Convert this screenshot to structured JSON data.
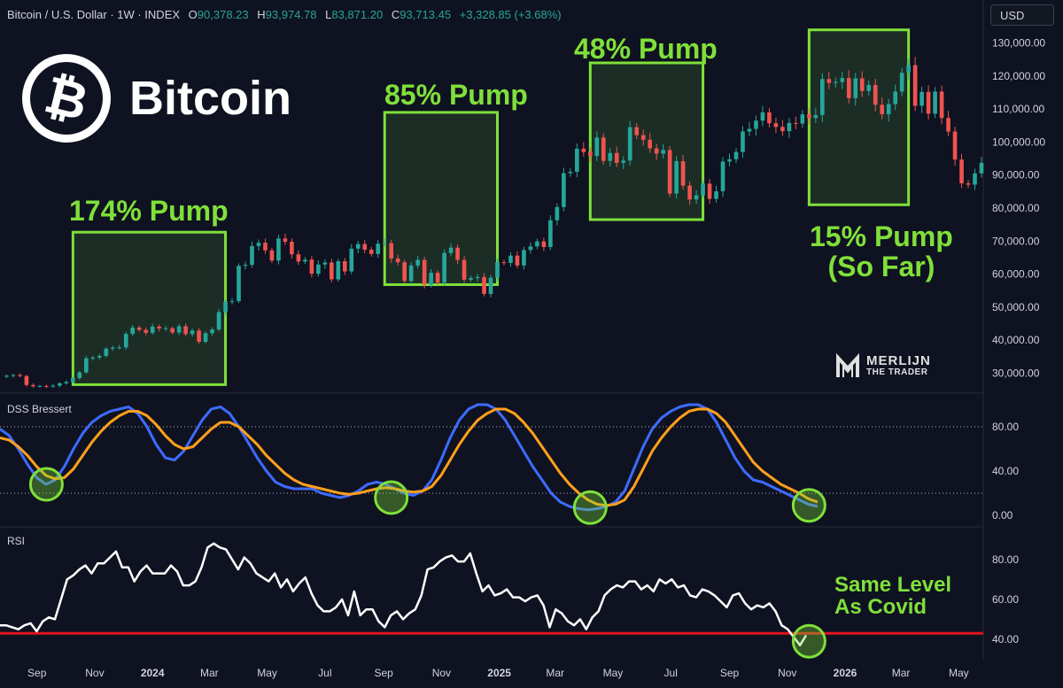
{
  "header": {
    "symbol": "Bitcoin / U.S. Dollar · 1W · INDEX",
    "o_label": "O",
    "o_value": "90,378.23",
    "h_label": "H",
    "h_value": "93,974.78",
    "l_label": "L",
    "l_value": "83,871.20",
    "c_label": "C",
    "c_value": "93,713.45",
    "change": "+3,328.85 (+3.68%)"
  },
  "currency_button": "USD",
  "logo": {
    "word": "Bitcoin",
    "icon": "bitcoin-logo-icon"
  },
  "watermark": {
    "line1": "MERLIJN",
    "line2": "THE TRADER",
    "icon": "merlijn-m-icon"
  },
  "annotations": {
    "pump1": "174% Pump",
    "pump2": "85% Pump",
    "pump3": "48% Pump",
    "pump4_line1": "15% Pump",
    "pump4_line2": "(So Far)",
    "rsi_note_line1": "Same Level",
    "rsi_note_line2": "As Covid"
  },
  "colors": {
    "background": "#0f1220",
    "up": "#26a69a",
    "down": "#ef5350",
    "highlight": "#7fe03a",
    "dss_blue": "#3d6bff",
    "dss_orange": "#ff9f1c",
    "rsi": "#ffffff",
    "rsi_line": "#e0131e"
  },
  "chart_data": [
    {
      "type": "candlestick",
      "title": "Bitcoin / U.S. Dollar · 1W · INDEX",
      "ylim": [
        25000,
        135000
      ],
      "y_ticks": [
        30000,
        40000,
        50000,
        60000,
        70000,
        80000,
        90000,
        100000,
        110000,
        120000,
        130000
      ],
      "y_tick_labels": [
        "30,000.00",
        "40,000.00",
        "50,000.00",
        "60,000.00",
        "70,000.00",
        "80,000.00",
        "90,000.00",
        "100,000.00",
        "110,000.00",
        "120,000.00",
        "130,000.00"
      ],
      "x_tick_labels": [
        "Sep",
        "Nov",
        "2024",
        "Mar",
        "May",
        "Jul",
        "Sep",
        "Nov",
        "2025",
        "Mar",
        "May",
        "Jul",
        "Sep",
        "Nov",
        "2026",
        "Mar",
        "May"
      ],
      "x_tick_dates": [
        "2023-09-01",
        "2023-11-01",
        "2024-01-01",
        "2024-03-01",
        "2024-05-01",
        "2024-07-01",
        "2024-09-01",
        "2024-11-01",
        "2025-01-01",
        "2025-03-01",
        "2025-05-01",
        "2025-07-01",
        "2025-09-01",
        "2025-11-01",
        "2026-01-01",
        "2026-03-01",
        "2026-05-01"
      ],
      "x_start": "2023-07-24",
      "x_end": "2026-05-25",
      "closes": [
        29200,
        29400,
        29100,
        26400,
        26000,
        26100,
        25900,
        26200,
        26900,
        27300,
        28500,
        30200,
        34500,
        34700,
        35200,
        37400,
        37700,
        37800,
        41900,
        43800,
        43100,
        42200,
        44100,
        43500,
        43600,
        42300,
        44200,
        41800,
        42900,
        39500,
        42100,
        43200,
        48500,
        51600,
        51800,
        62500,
        62800,
        68500,
        69500,
        67200,
        64100,
        70800,
        69800,
        66000,
        63800,
        64400,
        60100,
        62900,
        63500,
        58400,
        63900,
        60800,
        67700,
        69100,
        67400,
        66100,
        69200,
        69400,
        64700,
        63600,
        57900,
        62600,
        64300,
        56800,
        60400,
        57400,
        66400,
        68000,
        64300,
        58300,
        58800,
        59100,
        54000,
        58900,
        63600,
        63400,
        65600,
        62600,
        67300,
        68400,
        69900,
        68200,
        76300,
        80300,
        90600,
        91000,
        98000,
        97000,
        95800,
        101400,
        94300,
        96700,
        93700,
        94400,
        104500,
        102100,
        100700,
        98100,
        96500,
        97600,
        84400,
        94200,
        86800,
        82600,
        83900,
        87400,
        82800,
        85100,
        94100,
        94800,
        97000,
        103200,
        104000,
        106500,
        109000,
        105700,
        104600,
        103300,
        105800,
        105600,
        108400,
        107300,
        108200,
        119100,
        117900,
        118200,
        119400,
        113300,
        119300,
        115500,
        117300,
        111300,
        108400,
        111500,
        115300,
        121000,
        123300,
        111000,
        115200,
        108600,
        115300,
        107300,
        103200,
        94700,
        87500,
        87100,
        90500,
        93700
      ],
      "highlight_boxes": [
        {
          "label": "174% Pump",
          "start": "2023-10-09",
          "end": "2024-03-18",
          "low": 26500,
          "high": 72700
        },
        {
          "label": "85% Pump",
          "start": "2024-09-02",
          "end": "2024-12-30",
          "low": 56800,
          "high": 109000
        },
        {
          "label": "48% Pump",
          "start": "2025-04-07",
          "end": "2025-08-04",
          "low": 76500,
          "high": 124000
        },
        {
          "label": "15% Pump (So Far)",
          "start": "2025-11-24",
          "end": "2026-03-09",
          "low": 81000,
          "high": 134000
        }
      ]
    },
    {
      "type": "line",
      "title": "DSS Bressert",
      "ylim": [
        -8,
        108
      ],
      "y_ticks": [
        0,
        40,
        80
      ],
      "y_tick_labels": [
        "0.00",
        "40.00",
        "80.00"
      ],
      "levels": [
        80,
        20
      ],
      "series": [
        {
          "color": "#3d6bff",
          "values": [
            78,
            72,
            60,
            46,
            34,
            28,
            32,
            44,
            60,
            74,
            84,
            90,
            94,
            96,
            98,
            92,
            80,
            64,
            52,
            50,
            58,
            72,
            86,
            96,
            98,
            92,
            80,
            66,
            52,
            40,
            30,
            26,
            24,
            24,
            24,
            20,
            18,
            16,
            18,
            22,
            28,
            30,
            28,
            24,
            20,
            18,
            22,
            32,
            50,
            70,
            86,
            96,
            100,
            100,
            96,
            86,
            72,
            58,
            44,
            32,
            20,
            12,
            8,
            6,
            5,
            6,
            8,
            12,
            22,
            42,
            62,
            78,
            88,
            94,
            98,
            100,
            100,
            96,
            84,
            68,
            52,
            40,
            32,
            30,
            26,
            22,
            18,
            14,
            10,
            8
          ]
        },
        {
          "color": "#ff9f1c",
          "values": [
            70,
            68,
            62,
            54,
            44,
            36,
            33,
            34,
            42,
            54,
            66,
            76,
            84,
            90,
            94,
            94,
            90,
            82,
            72,
            64,
            60,
            62,
            70,
            78,
            84,
            84,
            80,
            72,
            64,
            54,
            46,
            38,
            32,
            28,
            26,
            24,
            22,
            20,
            19,
            20,
            22,
            24,
            25,
            24,
            22,
            21,
            22,
            26,
            36,
            50,
            64,
            76,
            86,
            92,
            96,
            96,
            92,
            84,
            74,
            62,
            50,
            38,
            28,
            20,
            14,
            10,
            9,
            10,
            14,
            26,
            42,
            58,
            70,
            80,
            88,
            94,
            96,
            96,
            92,
            84,
            72,
            60,
            48,
            40,
            34,
            28,
            24,
            20,
            15,
            12
          ]
        }
      ]
    },
    {
      "type": "line",
      "title": "RSI",
      "ylim": [
        32,
        95
      ],
      "y_ticks": [
        40,
        60,
        80
      ],
      "y_tick_labels": [
        "40.00",
        "60.00",
        "80.00"
      ],
      "levels": [
        43
      ],
      "series": [
        {
          "color": "#ffffff",
          "values": [
            47,
            47,
            46,
            45,
            47,
            48,
            44,
            49,
            51,
            50,
            60,
            70,
            72,
            75,
            77,
            73,
            78,
            78,
            81,
            84,
            76,
            76,
            69,
            74,
            77,
            73,
            73,
            73,
            77,
            74,
            67,
            67,
            69,
            76,
            86,
            88,
            86,
            85,
            80,
            75,
            81,
            78,
            73,
            71,
            69,
            73,
            66,
            70,
            64,
            68,
            71,
            63,
            57,
            54,
            54,
            56,
            60,
            52,
            64,
            52,
            55,
            55,
            49,
            46,
            52,
            54,
            50,
            53,
            55,
            62,
            75,
            76,
            79,
            81,
            82,
            79,
            79,
            83,
            73,
            64,
            67,
            62,
            63,
            65,
            61,
            61,
            59,
            61,
            62,
            57,
            46,
            55,
            53,
            49,
            47,
            50,
            45,
            51,
            54,
            62,
            65,
            67,
            66,
            69,
            69,
            65,
            67,
            64,
            70,
            68,
            70,
            66,
            67,
            62,
            61,
            65,
            64,
            62,
            59,
            56,
            62,
            63,
            58,
            55,
            57,
            56,
            58,
            54,
            47,
            45,
            41,
            37,
            42
          ]
        }
      ]
    }
  ]
}
